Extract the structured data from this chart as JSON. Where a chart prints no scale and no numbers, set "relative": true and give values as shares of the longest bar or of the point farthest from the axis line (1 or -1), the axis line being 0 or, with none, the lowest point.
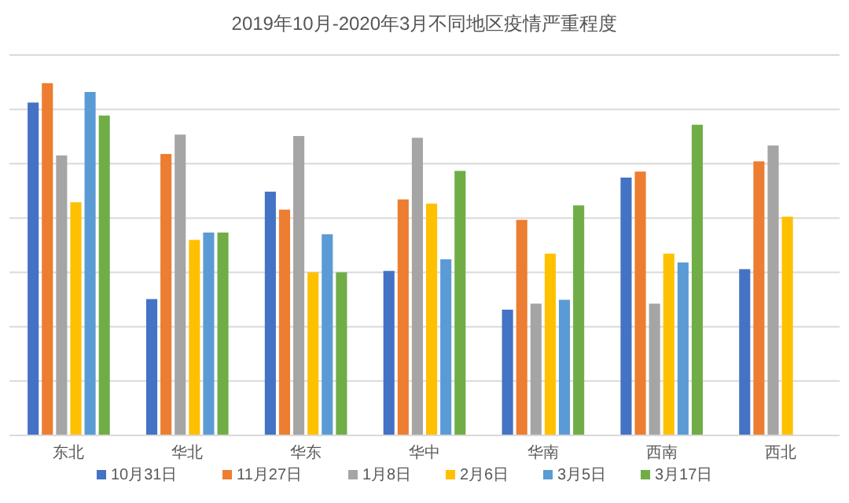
{
  "chart_data": {
    "type": "bar",
    "title": "2019年10月-2020年3月不同地区疫情严重程度",
    "categories": [
      "东北",
      "华北",
      "华东",
      "华中",
      "华南",
      "西南",
      "西北"
    ],
    "relative": true,
    "grid": "y",
    "legend": "bottom",
    "series": [
      {
        "name": "10月31日",
        "color": "#4472c4",
        "values": [
          0.945,
          0.387,
          0.692,
          0.467,
          0.357,
          0.732,
          0.472
        ]
      },
      {
        "name": "11月27日",
        "color": "#ed7d31",
        "values": [
          1,
          0.799,
          0.641,
          0.67,
          0.612,
          0.749,
          0.778
        ]
      },
      {
        "name": "1月8日",
        "color": "#a5a5a5",
        "values": [
          0.795,
          0.854,
          0.85,
          0.845,
          0.374,
          0.374,
          0.823
        ]
      },
      {
        "name": "2月6日",
        "color": "#ffc000",
        "values": [
          0.662,
          0.555,
          0.463,
          0.658,
          0.516,
          0.516,
          0.621
        ]
      },
      {
        "name": "3月5日",
        "color": "#5b9bd5",
        "values": [
          0.975,
          0.576,
          0.571,
          0.5,
          0.385,
          0.491,
          null
        ]
      },
      {
        "name": "3月17日",
        "color": "#70ad47",
        "values": [
          0.908,
          0.576,
          0.463,
          0.751,
          0.653,
          0.882,
          null
        ]
      }
    ]
  }
}
